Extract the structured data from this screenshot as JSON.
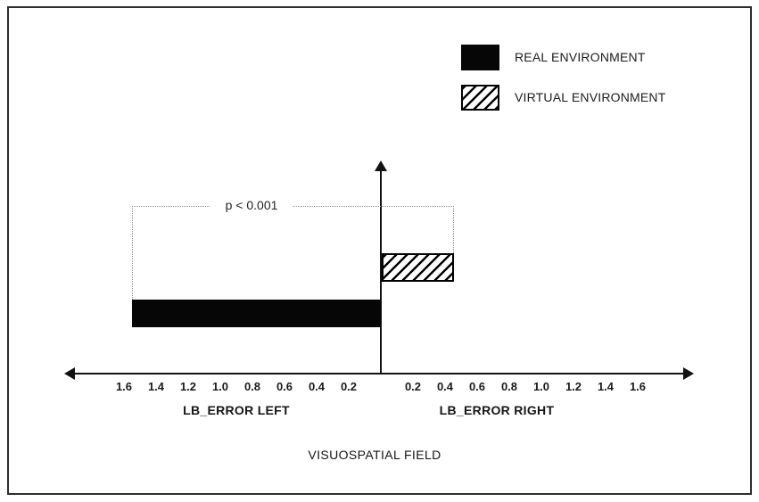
{
  "chart_data": {
    "type": "bar",
    "orientation": "horizontal-diverging",
    "legend": [
      {
        "label": "REAL ENVIRONMENT",
        "fill": "solid-black"
      },
      {
        "label": "VIRTUAL ENVIRONMENT",
        "fill": "diagonal-hatch"
      }
    ],
    "series": [
      {
        "name": "REAL ENVIRONMENT",
        "direction": "left",
        "axis_side": "LB_ERROR LEFT",
        "value": 1.55
      },
      {
        "name": "VIRTUAL ENVIRONMENT",
        "direction": "right",
        "axis_side": "LB_ERROR RIGHT",
        "value": 0.45
      }
    ],
    "axis": {
      "ticks_left": [
        "1.6",
        "1.4",
        "1.2",
        "1.0",
        "0.8",
        "0.6",
        "0.4",
        "0.2"
      ],
      "ticks_right": [
        "0.2",
        "0.4",
        "0.6",
        "0.8",
        "1.0",
        "1.2",
        "1.4",
        "1.6"
      ],
      "left_label": "LB_ERROR LEFT",
      "right_label": "LB_ERROR RIGHT",
      "title": "VISUOSPATIAL FIELD",
      "min": 0,
      "max": 1.6,
      "tick_step": 0.2,
      "grid": false
    },
    "annotation": {
      "text": "p < 0.001"
    },
    "colors": {
      "bar_real": "#060606",
      "hatch_stroke": "#000000",
      "background": "#ffffff",
      "frame_border": "#2e2e2e",
      "bracket_dotted": "#8d8d8d"
    },
    "legend_position": "top-right"
  }
}
